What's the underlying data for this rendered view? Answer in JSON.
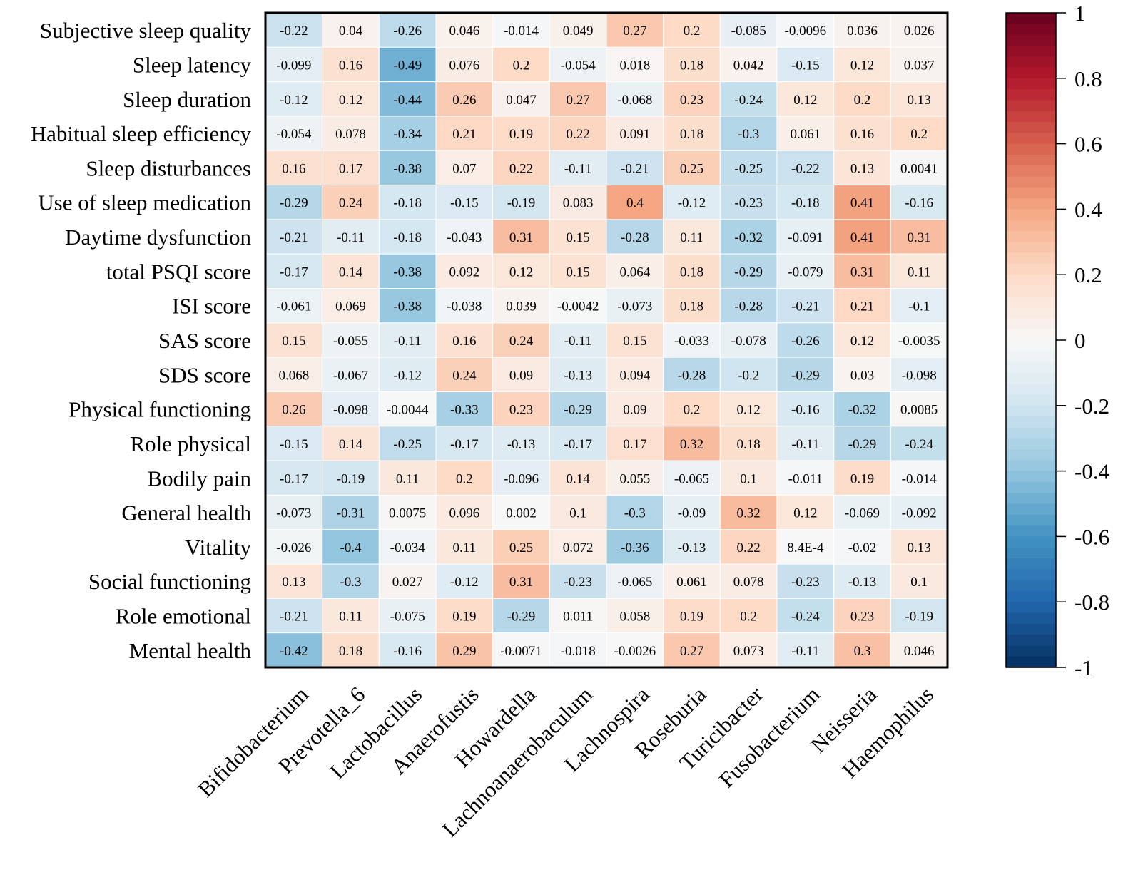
{
  "chart_data": {
    "type": "heatmap",
    "rows": [
      "Subjective sleep quality",
      "Sleep latency",
      "Sleep duration",
      "Habitual sleep efficiency",
      "Sleep disturbances",
      "Use of sleep medication",
      "Daytime dysfunction",
      "total PSQI score",
      "ISI score",
      "SAS score",
      "SDS score",
      "Physical functioning",
      "Role physical",
      "Bodily pain",
      "General health",
      "Vitality",
      "Social functioning",
      "Role emotional",
      "Mental health"
    ],
    "columns": [
      "Bifidobacterium",
      "Prevotella_6",
      "Lactobacillus",
      "Anaerofustis",
      "Howardella",
      "Lachnoanaerobaculum",
      "Lachnospira",
      "Roseburia",
      "Turicibacter",
      "Fusobacterium",
      "Neisseria",
      "Haemophilus"
    ],
    "values": [
      [
        -0.22,
        0.04,
        -0.26,
        0.046,
        -0.014,
        0.049,
        0.27,
        0.2,
        -0.085,
        -0.0096,
        0.036,
        0.026
      ],
      [
        -0.099,
        0.16,
        -0.49,
        0.076,
        0.2,
        -0.054,
        0.018,
        0.18,
        0.042,
        -0.15,
        0.12,
        0.037
      ],
      [
        -0.12,
        0.12,
        -0.44,
        0.26,
        0.047,
        0.27,
        -0.068,
        0.23,
        -0.24,
        0.12,
        0.2,
        0.13
      ],
      [
        -0.054,
        0.078,
        -0.34,
        0.21,
        0.19,
        0.22,
        0.091,
        0.18,
        -0.3,
        0.061,
        0.16,
        0.2
      ],
      [
        0.16,
        0.17,
        -0.38,
        0.07,
        0.22,
        -0.11,
        -0.21,
        0.25,
        -0.25,
        -0.22,
        0.13,
        0.0041
      ],
      [
        -0.29,
        0.24,
        -0.18,
        -0.15,
        -0.19,
        0.083,
        0.4,
        -0.12,
        -0.23,
        -0.18,
        0.41,
        -0.16
      ],
      [
        -0.21,
        -0.11,
        -0.18,
        -0.043,
        0.31,
        0.15,
        -0.28,
        0.11,
        -0.32,
        -0.091,
        0.41,
        0.31
      ],
      [
        -0.17,
        0.14,
        -0.38,
        0.092,
        0.12,
        0.15,
        0.064,
        0.18,
        -0.29,
        -0.079,
        0.31,
        0.11
      ],
      [
        -0.061,
        0.069,
        -0.38,
        -0.038,
        0.039,
        -0.0042,
        -0.073,
        0.18,
        -0.28,
        -0.21,
        0.21,
        -0.1
      ],
      [
        0.15,
        -0.055,
        -0.11,
        0.16,
        0.24,
        -0.11,
        0.15,
        -0.033,
        -0.078,
        -0.26,
        0.12,
        -0.0035
      ],
      [
        0.068,
        -0.067,
        -0.12,
        0.24,
        0.09,
        -0.13,
        0.094,
        -0.28,
        -0.2,
        -0.29,
        0.03,
        -0.098
      ],
      [
        0.26,
        -0.098,
        -0.0044,
        -0.33,
        0.23,
        -0.29,
        0.09,
        0.2,
        0.12,
        -0.16,
        -0.32,
        0.0085
      ],
      [
        -0.15,
        0.14,
        -0.25,
        -0.17,
        -0.13,
        -0.17,
        0.17,
        0.32,
        0.18,
        -0.11,
        -0.29,
        -0.24
      ],
      [
        -0.17,
        -0.19,
        0.11,
        0.2,
        -0.096,
        0.14,
        0.055,
        -0.065,
        0.1,
        -0.011,
        0.19,
        -0.014
      ],
      [
        -0.073,
        -0.31,
        0.0075,
        0.096,
        0.002,
        0.1,
        -0.3,
        -0.09,
        0.32,
        0.12,
        -0.069,
        -0.092
      ],
      [
        -0.026,
        -0.4,
        -0.034,
        0.11,
        0.25,
        0.072,
        -0.36,
        -0.13,
        0.22,
        0.00084,
        -0.02,
        0.13
      ],
      [
        0.13,
        -0.3,
        0.027,
        -0.12,
        0.31,
        -0.23,
        -0.065,
        0.061,
        0.078,
        -0.23,
        -0.13,
        0.1
      ],
      [
        -0.21,
        0.11,
        -0.075,
        0.19,
        -0.29,
        0.011,
        0.058,
        0.19,
        0.2,
        -0.24,
        0.23,
        -0.19
      ],
      [
        -0.42,
        0.18,
        -0.16,
        0.29,
        -0.0071,
        -0.018,
        -0.0026,
        0.27,
        0.073,
        -0.11,
        0.3,
        0.046
      ]
    ],
    "cell_labels": [
      [
        "-0.22",
        "0.04",
        "-0.26",
        "0.046",
        "-0.014",
        "0.049",
        "0.27",
        "0.2",
        "-0.085",
        "-0.0096",
        "0.036",
        "0.026"
      ],
      [
        "-0.099",
        "0.16",
        "-0.49",
        "0.076",
        "0.2",
        "-0.054",
        "0.018",
        "0.18",
        "0.042",
        "-0.15",
        "0.12",
        "0.037"
      ],
      [
        "-0.12",
        "0.12",
        "-0.44",
        "0.26",
        "0.047",
        "0.27",
        "-0.068",
        "0.23",
        "-0.24",
        "0.12",
        "0.2",
        "0.13"
      ],
      [
        "-0.054",
        "0.078",
        "-0.34",
        "0.21",
        "0.19",
        "0.22",
        "0.091",
        "0.18",
        "-0.3",
        "0.061",
        "0.16",
        "0.2"
      ],
      [
        "0.16",
        "0.17",
        "-0.38",
        "0.07",
        "0.22",
        "-0.11",
        "-0.21",
        "0.25",
        "-0.25",
        "-0.22",
        "0.13",
        "0.0041"
      ],
      [
        "-0.29",
        "0.24",
        "-0.18",
        "-0.15",
        "-0.19",
        "0.083",
        "0.4",
        "-0.12",
        "-0.23",
        "-0.18",
        "0.41",
        "-0.16"
      ],
      [
        "-0.21",
        "-0.11",
        "-0.18",
        "-0.043",
        "0.31",
        "0.15",
        "-0.28",
        "0.11",
        "-0.32",
        "-0.091",
        "0.41",
        "0.31"
      ],
      [
        "-0.17",
        "0.14",
        "-0.38",
        "0.092",
        "0.12",
        "0.15",
        "0.064",
        "0.18",
        "-0.29",
        "-0.079",
        "0.31",
        "0.11"
      ],
      [
        "-0.061",
        "0.069",
        "-0.38",
        "-0.038",
        "0.039",
        "-0.0042",
        "-0.073",
        "0.18",
        "-0.28",
        "-0.21",
        "0.21",
        "-0.1"
      ],
      [
        "0.15",
        "-0.055",
        "-0.11",
        "0.16",
        "0.24",
        "-0.11",
        "0.15",
        "-0.033",
        "-0.078",
        "-0.26",
        "0.12",
        "-0.0035"
      ],
      [
        "0.068",
        "-0.067",
        "-0.12",
        "0.24",
        "0.09",
        "-0.13",
        "0.094",
        "-0.28",
        "-0.2",
        "-0.29",
        "0.03",
        "-0.098"
      ],
      [
        "0.26",
        "-0.098",
        "-0.0044",
        "-0.33",
        "0.23",
        "-0.29",
        "0.09",
        "0.2",
        "0.12",
        "-0.16",
        "-0.32",
        "0.0085"
      ],
      [
        "-0.15",
        "0.14",
        "-0.25",
        "-0.17",
        "-0.13",
        "-0.17",
        "0.17",
        "0.32",
        "0.18",
        "-0.11",
        "-0.29",
        "-0.24"
      ],
      [
        "-0.17",
        "-0.19",
        "0.11",
        "0.2",
        "-0.096",
        "0.14",
        "0.055",
        "-0.065",
        "0.1",
        "-0.011",
        "0.19",
        "-0.014"
      ],
      [
        "-0.073",
        "-0.31",
        "0.0075",
        "0.096",
        "0.002",
        "0.1",
        "-0.3",
        "-0.09",
        "0.32",
        "0.12",
        "-0.069",
        "-0.092"
      ],
      [
        "-0.026",
        "-0.4",
        "-0.034",
        "0.11",
        "0.25",
        "0.072",
        "-0.36",
        "-0.13",
        "0.22",
        "8.4E-4",
        "-0.02",
        "0.13"
      ],
      [
        "0.13",
        "-0.3",
        "0.027",
        "-0.12",
        "0.31",
        "-0.23",
        "-0.065",
        "0.061",
        "0.078",
        "-0.23",
        "-0.13",
        "0.1"
      ],
      [
        "-0.21",
        "0.11",
        "-0.075",
        "0.19",
        "-0.29",
        "0.011",
        "0.058",
        "0.19",
        "0.2",
        "-0.24",
        "0.23",
        "-0.19"
      ],
      [
        "-0.42",
        "0.18",
        "-0.16",
        "0.29",
        "-0.0071",
        "-0.018",
        "-0.0026",
        "0.27",
        "0.073",
        "-0.11",
        "0.3",
        "0.046"
      ]
    ],
    "colorbar": {
      "range": [
        -1,
        1
      ],
      "ticks": [
        1,
        0.8,
        0.6,
        0.4,
        0.2,
        0,
        -0.2,
        -0.4,
        -0.6,
        -0.8,
        -1
      ],
      "tick_labels": [
        "1",
        "0.8",
        "0.6",
        "0.4",
        "0.2",
        "0",
        "-0.2",
        "-0.4",
        "-0.6",
        "-0.8",
        "-1"
      ],
      "colormap": [
        "#053061",
        "#2166ac",
        "#4393c3",
        "#92c5de",
        "#d1e5f0",
        "#f7f7f7",
        "#fddbc7",
        "#f4a582",
        "#d6604d",
        "#b2182b",
        "#67001f"
      ]
    },
    "title": "",
    "xlabel": "",
    "ylabel": ""
  }
}
